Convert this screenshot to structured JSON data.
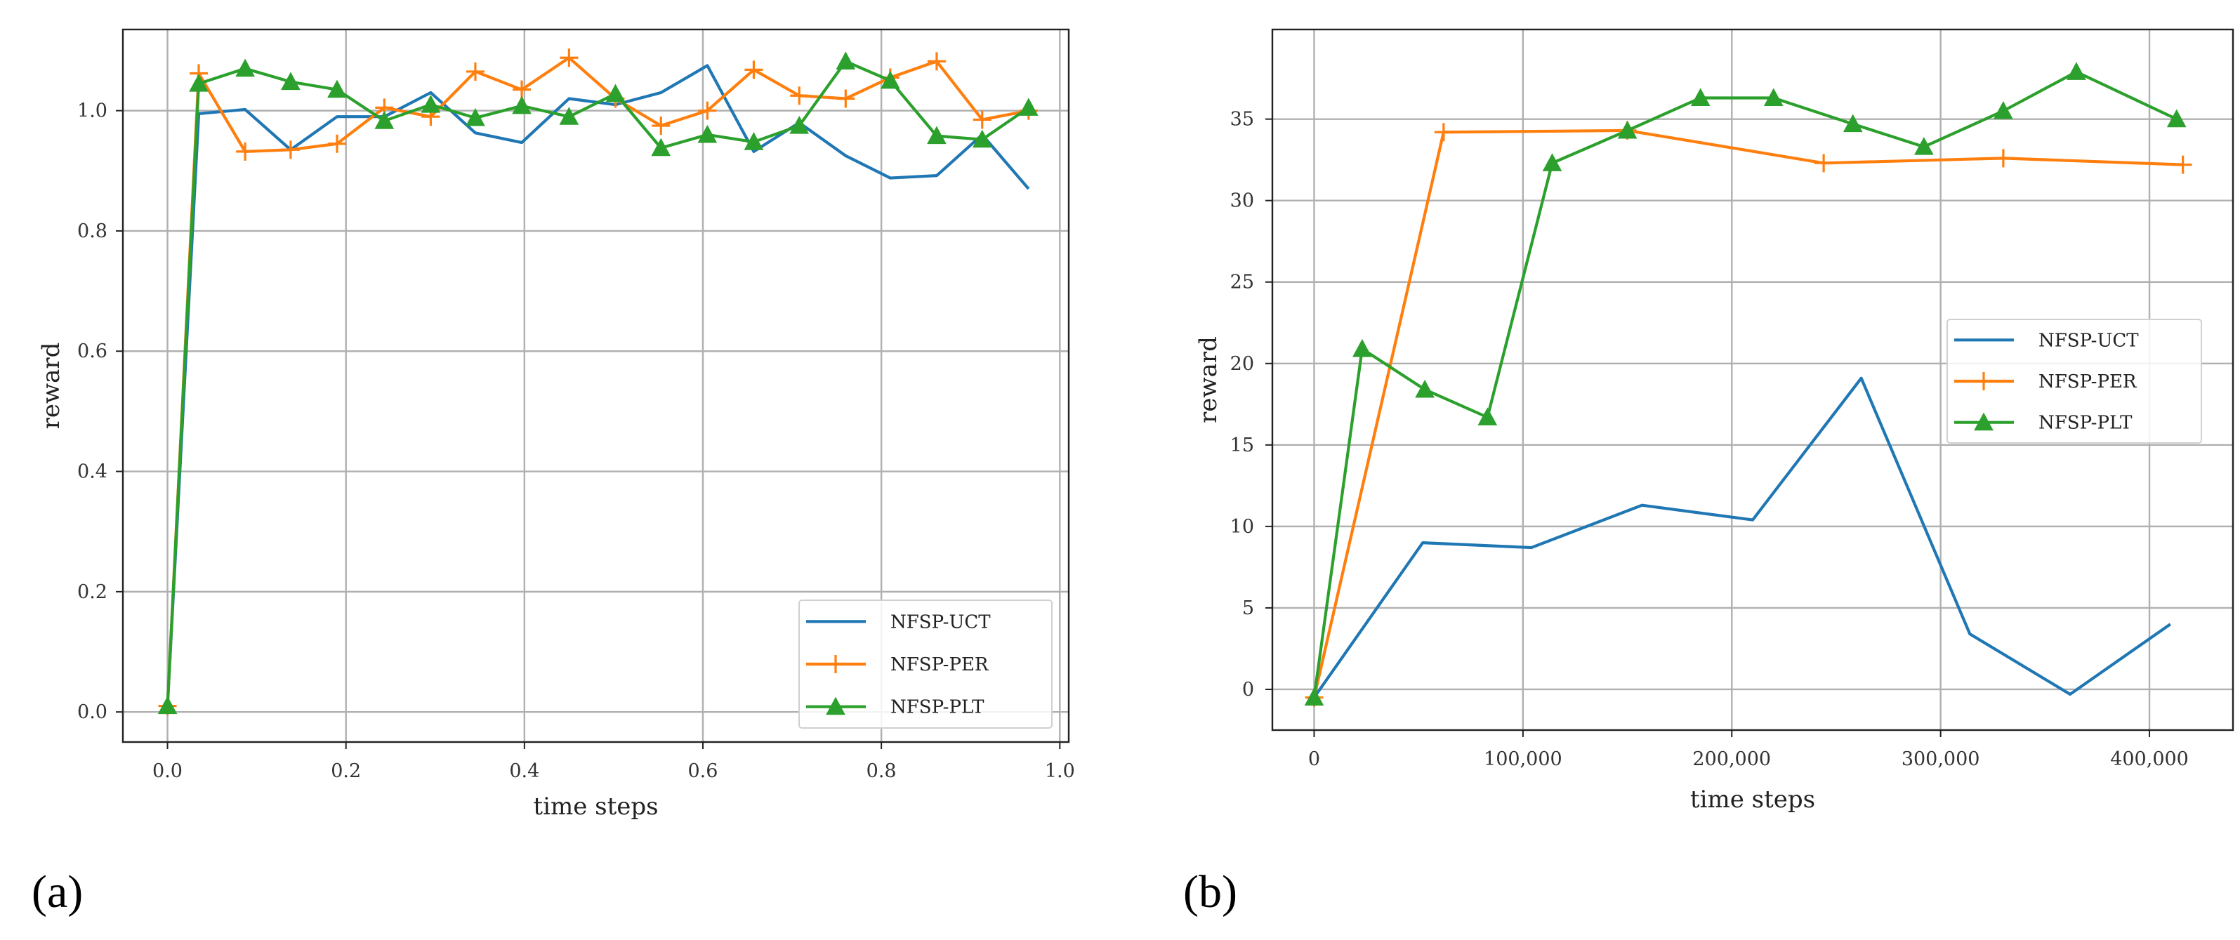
{
  "panels": [
    {
      "panel_label": "(a)",
      "chart_data": {
        "type": "line",
        "title": "",
        "xlabel": "time steps",
        "ylabel": "reward",
        "xlim": [
          -0.05,
          1.01
        ],
        "ylim": [
          -0.05,
          1.135
        ],
        "grid": true,
        "legend": "bottom-right",
        "xticks": [
          0.0,
          0.2,
          0.4,
          0.6,
          0.8,
          1.0
        ],
        "xtick_labels": [
          "0.0",
          "0.2",
          "0.4",
          "0.6",
          "0.8",
          "1.0"
        ],
        "yticks": [
          0.0,
          0.2,
          0.4,
          0.6,
          0.8,
          1.0
        ],
        "ytick_labels": [
          "0.0",
          "0.2",
          "0.4",
          "0.6",
          "0.8",
          "1.0"
        ],
        "series": [
          {
            "name": "NFSP-UCT",
            "color": "#1f77b4",
            "marker": "none",
            "x": [
              0.0,
              0.035,
              0.087,
              0.138,
              0.19,
              0.243,
              0.295,
              0.345,
              0.397,
              0.45,
              0.502,
              0.553,
              0.605,
              0.657,
              0.708,
              0.76,
              0.81,
              0.862,
              0.913,
              0.965
            ],
            "y": [
              0.01,
              0.995,
              1.002,
              0.935,
              0.99,
              0.99,
              1.03,
              0.963,
              0.947,
              1.02,
              1.01,
              1.03,
              1.075,
              0.932,
              0.98,
              0.925,
              0.888,
              0.892,
              0.96,
              0.87
            ]
          },
          {
            "name": "NFSP-PER",
            "color": "#ff7f0e",
            "marker": "plus",
            "x": [
              0.0,
              0.035,
              0.087,
              0.138,
              0.19,
              0.243,
              0.295,
              0.345,
              0.397,
              0.45,
              0.502,
              0.553,
              0.605,
              0.657,
              0.708,
              0.76,
              0.81,
              0.862,
              0.913,
              0.965
            ],
            "y": [
              0.01,
              1.062,
              0.932,
              0.935,
              0.945,
              1.005,
              0.99,
              1.065,
              1.035,
              1.088,
              1.02,
              0.975,
              1.0,
              1.068,
              1.025,
              1.02,
              1.055,
              1.082,
              0.985,
              1.0
            ]
          },
          {
            "name": "NFSP-PLT",
            "color": "#2ca02c",
            "marker": "triangle",
            "x": [
              0.0,
              0.035,
              0.087,
              0.138,
              0.19,
              0.243,
              0.295,
              0.345,
              0.397,
              0.45,
              0.502,
              0.553,
              0.605,
              0.657,
              0.708,
              0.76,
              0.81,
              0.862,
              0.913,
              0.965
            ],
            "y": [
              0.01,
              1.045,
              1.07,
              1.048,
              1.035,
              0.983,
              1.01,
              0.988,
              1.008,
              0.99,
              1.028,
              0.938,
              0.96,
              0.948,
              0.975,
              1.082,
              1.05,
              0.958,
              0.952,
              1.005
            ]
          }
        ]
      }
    },
    {
      "panel_label": "(b)",
      "chart_data": {
        "type": "line",
        "title": "",
        "xlabel": "time steps",
        "ylabel": "reward",
        "xlim": [
          -20000,
          440000
        ],
        "ylim": [
          -2.5,
          40.5
        ],
        "grid": true,
        "legend": "center-right",
        "xticks": [
          0,
          100000,
          200000,
          300000,
          400000
        ],
        "xtick_labels": [
          "0",
          "100,000",
          "200,000",
          "300,000",
          "400,000"
        ],
        "yticks": [
          0,
          5,
          10,
          15,
          20,
          25,
          30,
          35
        ],
        "ytick_labels": [
          "0",
          "5",
          "10",
          "15",
          "20",
          "25",
          "30",
          "35"
        ],
        "series": [
          {
            "name": "NFSP-UCT",
            "color": "#1f77b4",
            "marker": "none",
            "x": [
              0,
              52000,
              104000,
              157000,
              210000,
              262000,
              314000,
              362000,
              410000
            ],
            "y": [
              -0.5,
              9.0,
              8.7,
              11.3,
              10.4,
              19.1,
              3.4,
              -0.3,
              4.0
            ]
          },
          {
            "name": "NFSP-PER",
            "color": "#ff7f0e",
            "marker": "plus",
            "x": [
              0,
              62000,
              150000,
              244000,
              330000,
              416000
            ],
            "y": [
              -0.5,
              34.2,
              34.3,
              32.3,
              32.6,
              32.2
            ]
          },
          {
            "name": "NFSP-PLT",
            "color": "#2ca02c",
            "marker": "triangle",
            "x": [
              0,
              23000,
              53000,
              83000,
              114000,
              150000,
              185000,
              220000,
              258000,
              292000,
              330000,
              365000,
              413000
            ],
            "y": [
              -0.5,
              20.9,
              18.4,
              16.7,
              32.3,
              34.3,
              36.3,
              36.3,
              34.7,
              33.3,
              35.5,
              37.9,
              35.0
            ]
          }
        ]
      }
    }
  ]
}
